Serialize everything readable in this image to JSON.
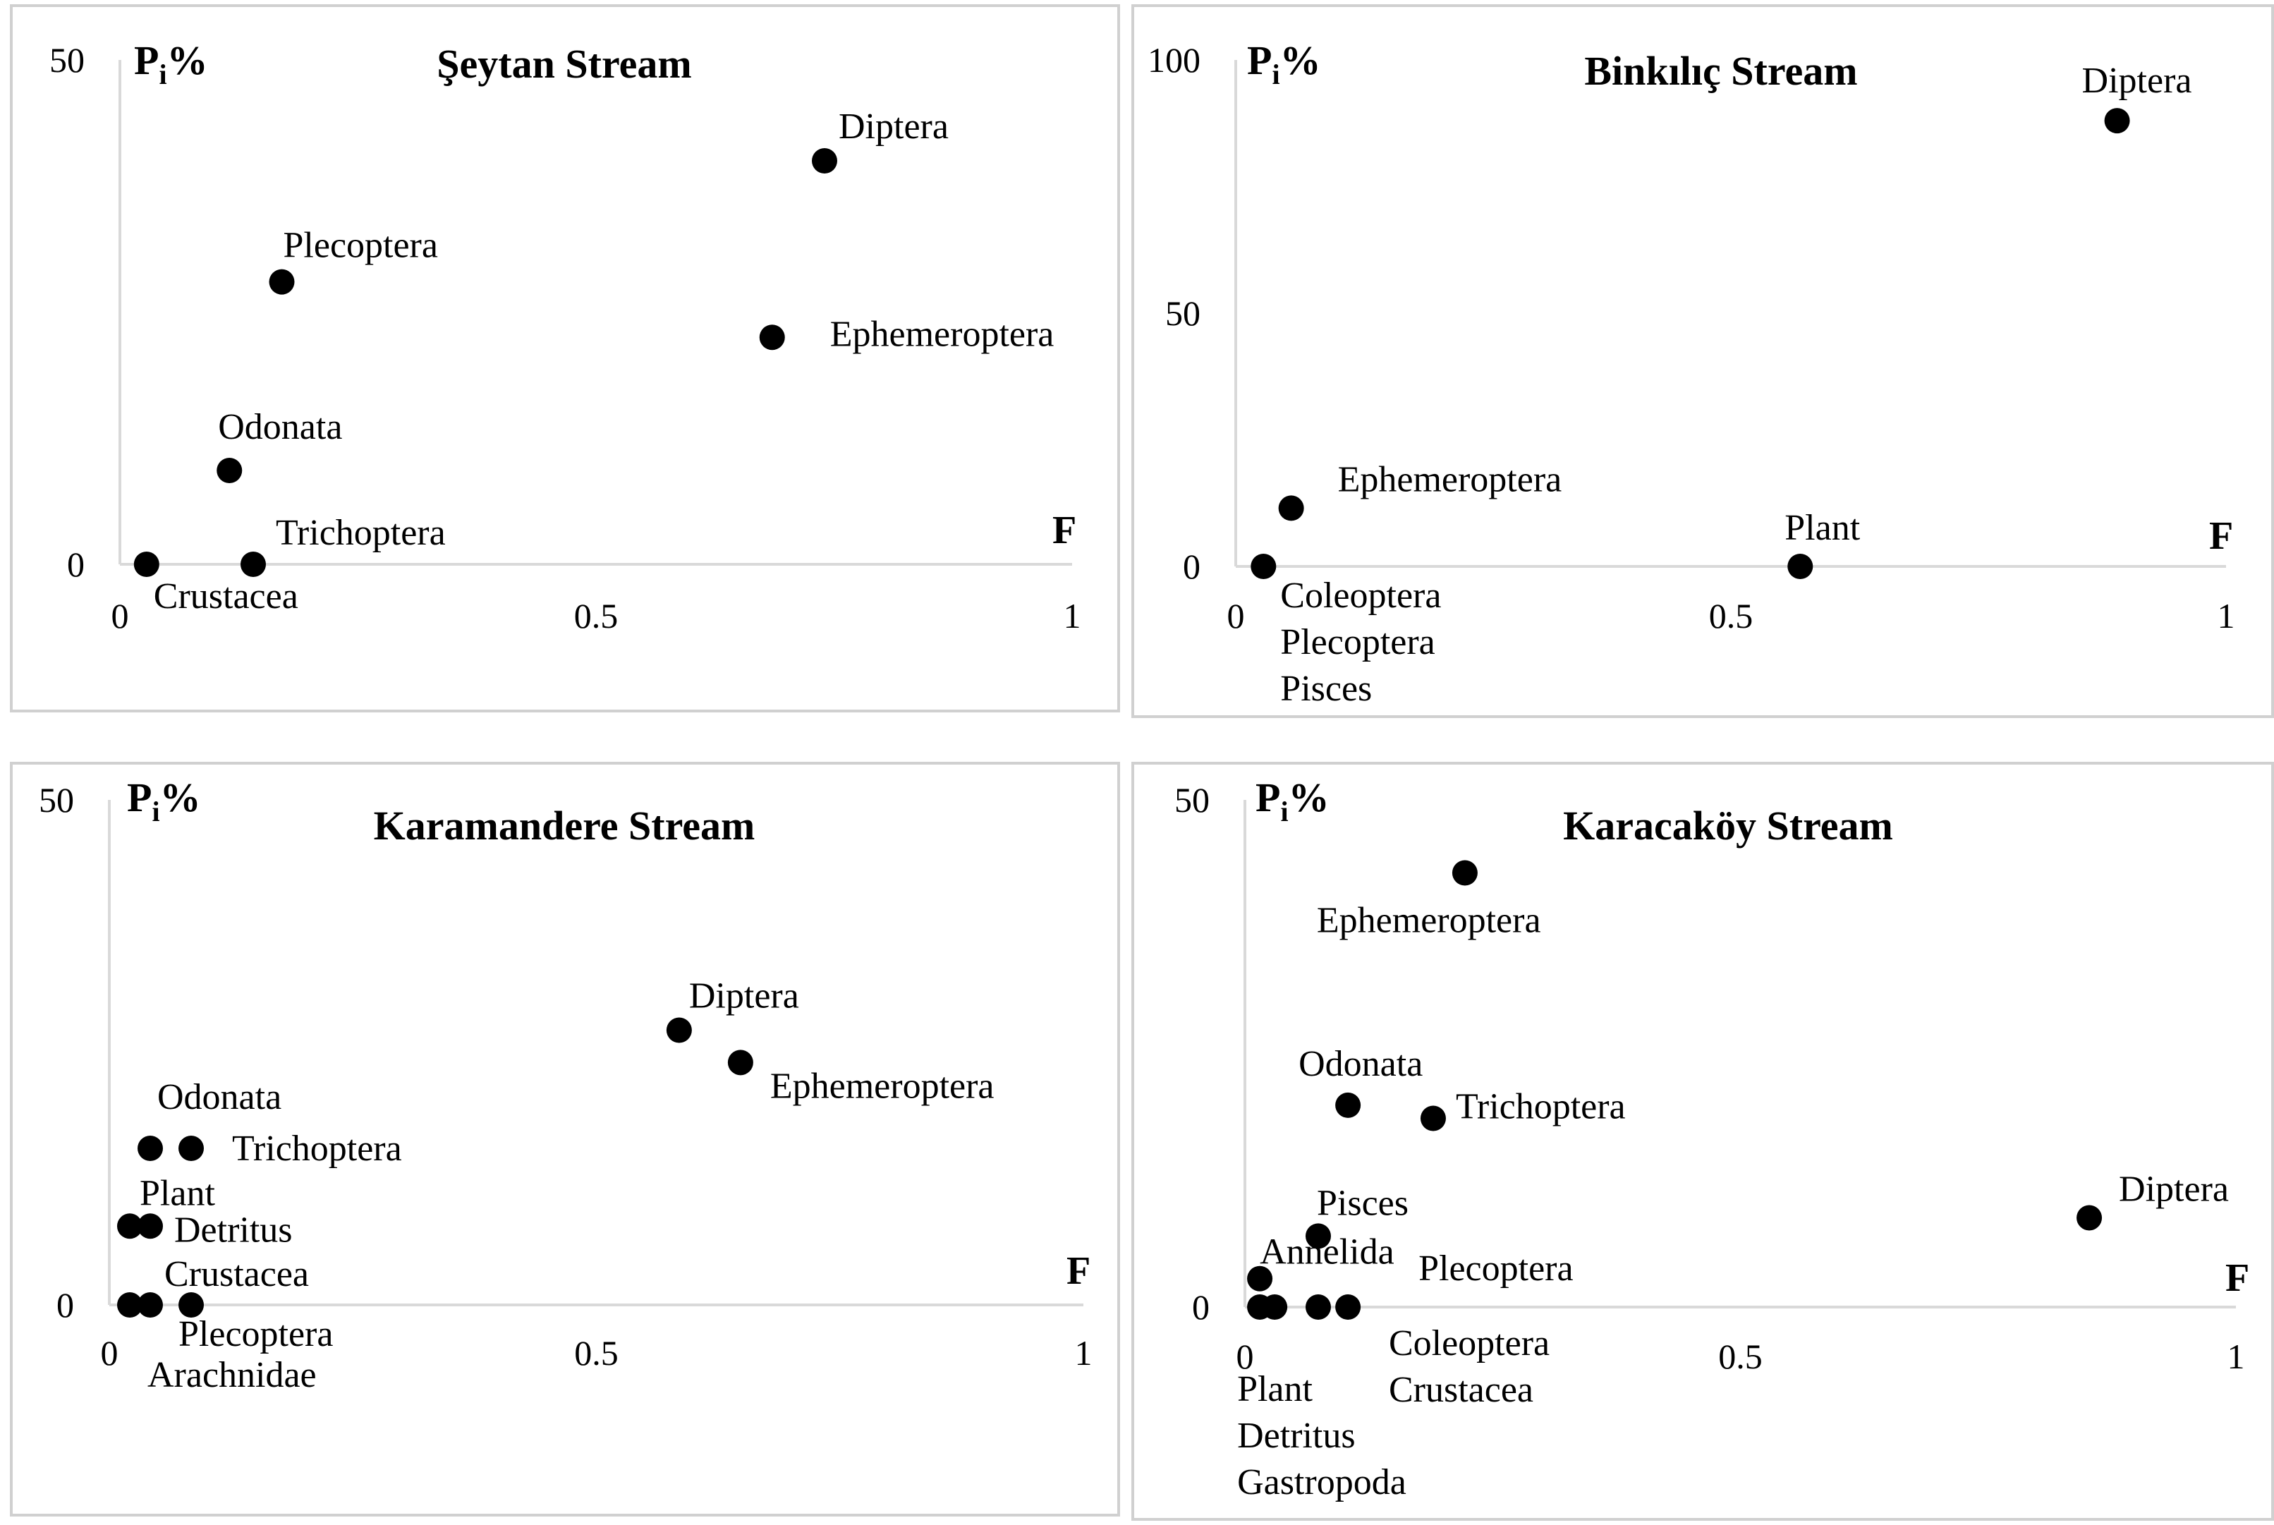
{
  "chart_data": [
    {
      "type": "scatter",
      "title": "Şeytan Stream",
      "xlabel": "F",
      "ylabel": "Pi%",
      "xlim": [
        0,
        1
      ],
      "ylim": [
        0,
        50
      ],
      "xticks": [
        "0",
        "0.5",
        "1"
      ],
      "yticks": [
        "0",
        "50"
      ],
      "points": [
        {
          "label": "Diptera",
          "x": 0.74,
          "y": 40
        },
        {
          "label": "Plecoptera",
          "x": 0.17,
          "y": 28
        },
        {
          "label": "Ephemeroptera",
          "x": 0.685,
          "y": 22.5
        },
        {
          "label": "Odonata",
          "x": 0.115,
          "y": 9.3
        },
        {
          "label": "Trichoptera",
          "x": 0.14,
          "y": 0
        },
        {
          "label": "Crustacea",
          "x": 0.028,
          "y": 0
        }
      ]
    },
    {
      "type": "scatter",
      "title": "Binkılıç Stream",
      "xlabel": "F",
      "ylabel": "Pi%",
      "xlim": [
        0,
        1
      ],
      "ylim": [
        0,
        100
      ],
      "xticks": [
        "0",
        "0.5",
        "1"
      ],
      "yticks": [
        "0",
        "50",
        "100"
      ],
      "points": [
        {
          "label": "Diptera",
          "x": 0.89,
          "y": 88
        },
        {
          "label": "Ephemeroptera",
          "x": 0.056,
          "y": 11.5
        },
        {
          "label": "Plant",
          "x": 0.57,
          "y": 0
        },
        {
          "label": "Coleoptera\nPlecoptera\nPisces",
          "x": 0.028,
          "y": 0
        }
      ]
    },
    {
      "type": "scatter",
      "title": "Karamandere Stream",
      "xlabel": "F",
      "ylabel": "Pi%",
      "xlim": [
        0,
        1
      ],
      "ylim": [
        0,
        50
      ],
      "xticks": [
        "0",
        "0.5",
        "1"
      ],
      "yticks": [
        "0",
        "50"
      ],
      "points": [
        {
          "label": "Diptera",
          "x": 0.585,
          "y": 27.2
        },
        {
          "label": "Ephemeroptera",
          "x": 0.648,
          "y": 24
        },
        {
          "label": "Odonata",
          "x": 0.042,
          "y": 15.5
        },
        {
          "label": "Trichoptera",
          "x": 0.084,
          "y": 15.5
        },
        {
          "label": "Plant",
          "x": 0.021,
          "y": 7.8
        },
        {
          "label": "Detritus",
          "x": 0.042,
          "y": 7.8
        },
        {
          "label": "Crustacea",
          "x": 0.084,
          "y": 0
        },
        {
          "label": "Plecoptera",
          "x": 0.042,
          "y": 0
        },
        {
          "label": "Arachnidae",
          "x": 0.021,
          "y": 0
        }
      ]
    },
    {
      "type": "scatter",
      "title": "Karacaköy Stream",
      "xlabel": "F",
      "ylabel": "Pi%",
      "xlim": [
        0,
        1
      ],
      "ylim": [
        0,
        50
      ],
      "xticks": [
        "0",
        "0.5",
        "1"
      ],
      "yticks": [
        "0",
        "50"
      ],
      "points": [
        {
          "label": "Ephemeroptera",
          "x": 0.222,
          "y": 42.8
        },
        {
          "label": "Odonata",
          "x": 0.104,
          "y": 19.9
        },
        {
          "label": "Trichoptera",
          "x": 0.19,
          "y": 18.6
        },
        {
          "label": "Diptera",
          "x": 0.852,
          "y": 8.8
        },
        {
          "label": "Pisces",
          "x": 0.074,
          "y": 7
        },
        {
          "label": "Annelida",
          "x": 0.015,
          "y": 2.8
        },
        {
          "label": "Plecoptera",
          "x": 0.104,
          "y": 0
        },
        {
          "label": "Coleoptera\nCrustacea",
          "x": 0.074,
          "y": 0
        },
        {
          "label": "Plant\nDetritus\nGastropoda",
          "x": 0.015,
          "y": 0
        },
        {
          "label": "",
          "x": 0.03,
          "y": 0
        }
      ]
    }
  ]
}
